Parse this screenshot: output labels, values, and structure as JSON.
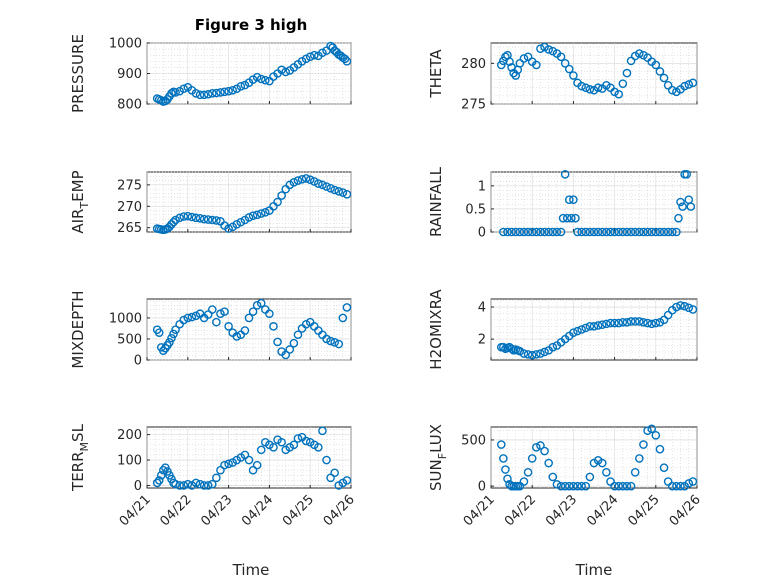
{
  "figure": {
    "title": "Figure 3 high",
    "xlabel": "Time",
    "marker_color": "#0072bd",
    "grid": true,
    "minor_grid": true
  },
  "chart_data": [
    {
      "type": "scatter",
      "ylabel": "PRESSURE",
      "ylabel_sub": "",
      "ylabel_after": "",
      "xlim": [
        "04/21",
        "04/26"
      ],
      "ylim": [
        800,
        1000
      ],
      "xticks": [
        "04/21",
        "04/22",
        "04/23",
        "04/24",
        "04/25",
        "04/26"
      ],
      "yticks": [
        800,
        900,
        1000
      ],
      "ytick_labels": [
        "800",
        "900",
        "1000"
      ],
      "x": [
        0.25,
        0.3,
        0.35,
        0.4,
        0.45,
        0.5,
        0.55,
        0.6,
        0.65,
        0.7,
        0.8,
        0.9,
        1.0,
        1.1,
        1.2,
        1.3,
        1.4,
        1.5,
        1.6,
        1.7,
        1.8,
        1.9,
        2.0,
        2.1,
        2.2,
        2.3,
        2.4,
        2.5,
        2.6,
        2.7,
        2.8,
        2.9,
        3.0,
        3.1,
        3.2,
        3.3,
        3.4,
        3.5,
        3.6,
        3.7,
        3.8,
        3.9,
        4.0,
        4.1,
        4.2,
        4.3,
        4.4,
        4.5,
        4.55,
        4.6,
        4.65,
        4.7,
        4.75,
        4.8,
        4.85,
        4.9
      ],
      "y": [
        818,
        815,
        812,
        808,
        810,
        815,
        825,
        835,
        840,
        838,
        842,
        850,
        855,
        845,
        835,
        830,
        830,
        832,
        835,
        836,
        838,
        840,
        842,
        845,
        850,
        858,
        862,
        870,
        880,
        888,
        882,
        878,
        875,
        890,
        900,
        912,
        905,
        910,
        920,
        930,
        940,
        948,
        955,
        960,
        958,
        968,
        975,
        990,
        985,
        975,
        970,
        962,
        958,
        952,
        948,
        940
      ]
    },
    {
      "type": "scatter",
      "ylabel": "THETA",
      "ylabel_sub": "",
      "ylabel_after": "",
      "xlim": [
        "04/21",
        "04/26"
      ],
      "ylim": [
        275,
        282.5
      ],
      "xticks": [
        "04/21",
        "04/22",
        "04/23",
        "04/24",
        "04/25",
        "04/26"
      ],
      "yticks": [
        275,
        280
      ],
      "ytick_labels": [
        "275",
        "280"
      ],
      "x": [
        0.25,
        0.3,
        0.35,
        0.4,
        0.45,
        0.5,
        0.55,
        0.6,
        0.65,
        0.7,
        0.8,
        0.9,
        1.0,
        1.1,
        1.2,
        1.3,
        1.4,
        1.5,
        1.6,
        1.7,
        1.8,
        1.9,
        2.0,
        2.1,
        2.2,
        2.3,
        2.4,
        2.5,
        2.6,
        2.7,
        2.8,
        2.9,
        3.0,
        3.1,
        3.2,
        3.3,
        3.4,
        3.5,
        3.6,
        3.7,
        3.8,
        3.9,
        4.0,
        4.1,
        4.2,
        4.3,
        4.4,
        4.5,
        4.6,
        4.7,
        4.8,
        4.9
      ],
      "y": [
        279.8,
        280.3,
        280.8,
        281.0,
        280.2,
        279.5,
        278.8,
        278.5,
        279.2,
        280.0,
        280.6,
        280.8,
        280.2,
        279.8,
        281.8,
        282.0,
        281.7,
        281.5,
        281.2,
        280.8,
        280.0,
        279.3,
        278.5,
        277.6,
        277.2,
        277.0,
        276.8,
        276.7,
        277.0,
        276.9,
        277.3,
        277.0,
        276.5,
        276.2,
        277.5,
        278.8,
        280.3,
        280.9,
        281.2,
        281.0,
        280.7,
        280.2,
        279.8,
        279.0,
        278.2,
        277.3,
        276.7,
        276.5,
        276.8,
        277.2,
        277.4,
        277.6
      ]
    },
    {
      "type": "scatter",
      "ylabel": "AIR",
      "ylabel_sub": "T",
      "ylabel_after": "EMP",
      "xlim": [
        "04/21",
        "04/26"
      ],
      "ylim": [
        264,
        278
      ],
      "xticks": [
        "04/21",
        "04/22",
        "04/23",
        "04/24",
        "04/25",
        "04/26"
      ],
      "yticks": [
        265,
        270,
        275
      ],
      "ytick_labels": [
        "265",
        "270",
        "275"
      ],
      "x": [
        0.25,
        0.3,
        0.35,
        0.4,
        0.45,
        0.5,
        0.55,
        0.6,
        0.65,
        0.7,
        0.8,
        0.9,
        1.0,
        1.1,
        1.2,
        1.3,
        1.4,
        1.5,
        1.6,
        1.7,
        1.8,
        1.9,
        2.0,
        2.1,
        2.2,
        2.3,
        2.4,
        2.5,
        2.6,
        2.7,
        2.8,
        2.9,
        3.0,
        3.1,
        3.2,
        3.3,
        3.4,
        3.5,
        3.6,
        3.7,
        3.8,
        3.9,
        4.0,
        4.1,
        4.2,
        4.3,
        4.4,
        4.5,
        4.6,
        4.7,
        4.8,
        4.9
      ],
      "y": [
        264.8,
        264.7,
        264.6,
        264.5,
        264.6,
        264.8,
        265.2,
        265.8,
        266.3,
        266.8,
        267.3,
        267.6,
        267.7,
        267.5,
        267.3,
        267.2,
        267.0,
        266.9,
        266.8,
        266.7,
        266.5,
        265.5,
        264.8,
        265.2,
        265.8,
        266.3,
        266.8,
        267.4,
        267.8,
        268.0,
        268.3,
        268.6,
        269.0,
        270.0,
        271.0,
        272.5,
        274.0,
        275.0,
        275.6,
        276.0,
        276.3,
        276.5,
        276.2,
        275.8,
        275.3,
        275.0,
        274.6,
        274.2,
        273.8,
        273.5,
        273.2,
        272.8
      ]
    },
    {
      "type": "scatter",
      "ylabel": "RAINFALL",
      "ylabel_sub": "",
      "ylabel_after": "",
      "xlim": [
        "04/21",
        "04/26"
      ],
      "ylim": [
        0,
        1.3
      ],
      "xticks": [
        "04/21",
        "04/22",
        "04/23",
        "04/24",
        "04/25",
        "04/26"
      ],
      "yticks": [
        0,
        0.5,
        1
      ],
      "ytick_labels": [
        "0",
        "0.5",
        "1"
      ],
      "x": [
        0.3,
        0.4,
        0.5,
        0.6,
        0.7,
        0.8,
        0.9,
        1.0,
        1.1,
        1.2,
        1.3,
        1.4,
        1.5,
        1.6,
        1.7,
        1.75,
        1.8,
        1.85,
        1.9,
        1.95,
        2.0,
        2.05,
        2.1,
        2.2,
        2.3,
        2.4,
        2.5,
        2.6,
        2.7,
        2.8,
        2.9,
        3.0,
        3.1,
        3.2,
        3.3,
        3.4,
        3.5,
        3.6,
        3.7,
        3.8,
        3.9,
        4.0,
        4.1,
        4.2,
        4.3,
        4.4,
        4.5,
        4.55,
        4.6,
        4.65,
        4.7,
        4.75,
        4.8,
        4.85
      ],
      "y": [
        0,
        0,
        0,
        0,
        0,
        0,
        0,
        0,
        0,
        0,
        0,
        0,
        0,
        0,
        0,
        0.3,
        1.25,
        0.3,
        0.7,
        0.3,
        0.7,
        0.3,
        0,
        0,
        0,
        0,
        0,
        0,
        0,
        0,
        0,
        0,
        0,
        0,
        0,
        0,
        0,
        0,
        0,
        0,
        0,
        0,
        0,
        0,
        0,
        0,
        0,
        0.3,
        0.65,
        0.55,
        1.25,
        1.25,
        0.7,
        0.55
      ]
    },
    {
      "type": "scatter",
      "ylabel": "MIXDEPTH",
      "ylabel_sub": "",
      "ylabel_after": "",
      "xlim": [
        "04/21",
        "04/26"
      ],
      "ylim": [
        0,
        1450
      ],
      "xticks": [
        "04/21",
        "04/22",
        "04/23",
        "04/24",
        "04/25",
        "04/26"
      ],
      "yticks": [
        0,
        500,
        1000
      ],
      "ytick_labels": [
        "0",
        "500",
        "1000"
      ],
      "x": [
        0.25,
        0.3,
        0.35,
        0.4,
        0.45,
        0.5,
        0.55,
        0.6,
        0.65,
        0.7,
        0.8,
        0.9,
        1.0,
        1.1,
        1.2,
        1.3,
        1.4,
        1.5,
        1.6,
        1.7,
        1.8,
        1.9,
        2.0,
        2.1,
        2.2,
        2.3,
        2.4,
        2.5,
        2.6,
        2.7,
        2.8,
        2.9,
        3.0,
        3.1,
        3.2,
        3.3,
        3.4,
        3.5,
        3.6,
        3.7,
        3.8,
        3.9,
        4.0,
        4.1,
        4.2,
        4.3,
        4.4,
        4.5,
        4.6,
        4.7,
        4.8,
        4.9
      ],
      "y": [
        720,
        650,
        300,
        220,
        280,
        350,
        420,
        520,
        620,
        720,
        850,
        950,
        1000,
        1020,
        1050,
        1100,
        1000,
        1080,
        1200,
        900,
        1100,
        1150,
        800,
        650,
        560,
        600,
        700,
        1000,
        1150,
        1300,
        1350,
        1200,
        1100,
        800,
        430,
        200,
        120,
        250,
        400,
        600,
        750,
        850,
        900,
        800,
        700,
        600,
        500,
        450,
        420,
        380,
        1000,
        1250
      ]
    },
    {
      "type": "scatter",
      "ylabel": "H2OMIXRA",
      "ylabel_sub": "",
      "ylabel_after": "",
      "xlim": [
        "04/21",
        "04/26"
      ],
      "ylim": [
        0.7,
        4.5
      ],
      "xticks": [
        "04/21",
        "04/22",
        "04/23",
        "04/24",
        "04/25",
        "04/26"
      ],
      "yticks": [
        2,
        4
      ],
      "ytick_labels": [
        "2",
        "4"
      ],
      "x": [
        0.25,
        0.3,
        0.35,
        0.4,
        0.45,
        0.5,
        0.55,
        0.6,
        0.65,
        0.7,
        0.8,
        0.9,
        1.0,
        1.1,
        1.2,
        1.3,
        1.4,
        1.5,
        1.6,
        1.7,
        1.8,
        1.9,
        2.0,
        2.1,
        2.2,
        2.3,
        2.4,
        2.5,
        2.6,
        2.7,
        2.8,
        2.9,
        3.0,
        3.1,
        3.2,
        3.3,
        3.4,
        3.5,
        3.6,
        3.7,
        3.8,
        3.9,
        4.0,
        4.1,
        4.2,
        4.3,
        4.4,
        4.5,
        4.6,
        4.7,
        4.8,
        4.9
      ],
      "y": [
        1.5,
        1.5,
        1.4,
        1.45,
        1.5,
        1.4,
        1.3,
        1.35,
        1.3,
        1.25,
        1.1,
        1.05,
        1.0,
        1.05,
        1.1,
        1.2,
        1.3,
        1.5,
        1.6,
        1.8,
        2.0,
        2.2,
        2.4,
        2.5,
        2.6,
        2.7,
        2.8,
        2.8,
        2.85,
        2.9,
        2.95,
        3.0,
        3.0,
        3.0,
        3.05,
        3.05,
        3.1,
        3.1,
        3.1,
        3.05,
        3.0,
        2.95,
        3.0,
        3.05,
        3.2,
        3.5,
        3.8,
        4.0,
        4.1,
        4.05,
        3.95,
        3.85
      ]
    },
    {
      "type": "scatter",
      "ylabel": "TERR",
      "ylabel_sub": "M",
      "ylabel_after": "SL",
      "xlim": [
        "04/21",
        "04/26"
      ],
      "ylim": [
        -10,
        230
      ],
      "xticks": [
        "04/21",
        "04/22",
        "04/23",
        "04/24",
        "04/25",
        "04/26"
      ],
      "yticks": [
        0,
        100,
        200
      ],
      "ytick_labels": [
        "0",
        "100",
        "200"
      ],
      "x": [
        0.25,
        0.3,
        0.35,
        0.4,
        0.45,
        0.5,
        0.55,
        0.6,
        0.65,
        0.7,
        0.8,
        0.9,
        1.0,
        1.1,
        1.2,
        1.3,
        1.4,
        1.5,
        1.6,
        1.7,
        1.8,
        1.9,
        2.0,
        2.1,
        2.2,
        2.3,
        2.4,
        2.5,
        2.6,
        2.7,
        2.8,
        2.9,
        3.0,
        3.1,
        3.2,
        3.3,
        3.4,
        3.5,
        3.6,
        3.7,
        3.8,
        3.9,
        4.0,
        4.1,
        4.2,
        4.3,
        4.4,
        4.5,
        4.6,
        4.7,
        4.8,
        4.9
      ],
      "y": [
        10,
        20,
        40,
        60,
        70,
        55,
        40,
        25,
        10,
        5,
        0,
        0,
        5,
        0,
        10,
        5,
        0,
        0,
        5,
        30,
        60,
        80,
        85,
        90,
        100,
        110,
        120,
        100,
        60,
        80,
        140,
        170,
        160,
        150,
        180,
        170,
        140,
        150,
        160,
        185,
        190,
        175,
        170,
        160,
        150,
        215,
        100,
        30,
        50,
        0,
        10,
        20
      ]
    },
    {
      "type": "scatter",
      "ylabel": "SUN",
      "ylabel_sub": "F",
      "ylabel_after": "LUX",
      "xlim": [
        "04/21",
        "04/26"
      ],
      "ylim": [
        -20,
        640
      ],
      "xticks": [
        "04/21",
        "04/22",
        "04/23",
        "04/24",
        "04/25",
        "04/26"
      ],
      "yticks": [
        0,
        500
      ],
      "ytick_labels": [
        "0",
        "500"
      ],
      "x": [
        0.25,
        0.3,
        0.35,
        0.4,
        0.45,
        0.5,
        0.55,
        0.6,
        0.65,
        0.7,
        0.8,
        0.9,
        1.0,
        1.1,
        1.2,
        1.3,
        1.4,
        1.5,
        1.6,
        1.7,
        1.8,
        1.9,
        2.0,
        2.1,
        2.2,
        2.3,
        2.4,
        2.5,
        2.6,
        2.7,
        2.8,
        2.9,
        3.0,
        3.1,
        3.2,
        3.3,
        3.4,
        3.5,
        3.6,
        3.7,
        3.8,
        3.9,
        4.0,
        4.1,
        4.2,
        4.3,
        4.4,
        4.5,
        4.6,
        4.7,
        4.8,
        4.9
      ],
      "y": [
        450,
        300,
        180,
        80,
        20,
        0,
        0,
        0,
        0,
        0,
        50,
        150,
        300,
        420,
        440,
        380,
        250,
        100,
        20,
        0,
        0,
        0,
        0,
        0,
        0,
        0,
        100,
        250,
        280,
        250,
        150,
        50,
        0,
        0,
        0,
        0,
        0,
        150,
        300,
        450,
        600,
        620,
        550,
        400,
        200,
        50,
        0,
        0,
        0,
        0,
        30,
        50
      ]
    }
  ]
}
